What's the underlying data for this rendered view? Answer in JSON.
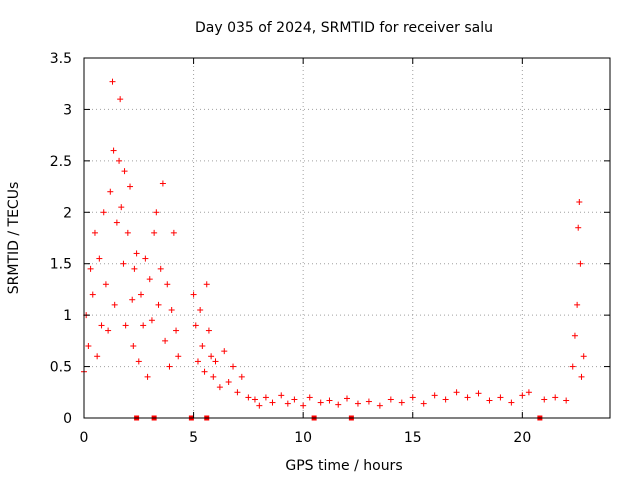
{
  "chart_data": {
    "type": "scatter",
    "title": "Day 035 of 2024, SRMTID for receiver salu",
    "xlabel": "GPS time / hours",
    "ylabel": "SRMTID / TECUs",
    "xlim": [
      0,
      24
    ],
    "ylim": [
      0,
      3.5
    ],
    "xticks": [
      0,
      5,
      10,
      15,
      20
    ],
    "xtick_labels": [
      "0",
      "5",
      "10",
      "15",
      "20"
    ],
    "yticks": [
      0,
      0.5,
      1,
      1.5,
      2,
      2.5,
      3,
      3.5
    ],
    "ytick_labels": [
      "0",
      "0.5",
      "1",
      "1.5",
      "2",
      "2.5",
      "3",
      "3.5"
    ],
    "grid": true,
    "marker": "+",
    "marker_color": "#ff0000",
    "zero_markers_x": [
      2.4,
      3.2,
      4.9,
      5.6,
      10.5,
      12.2,
      20.8
    ],
    "series": [
      {
        "name": "SRMTID",
        "x": [
          0.0,
          0.1,
          0.2,
          0.3,
          0.4,
          0.5,
          0.6,
          0.7,
          0.8,
          0.9,
          1.0,
          1.1,
          1.2,
          1.3,
          1.35,
          1.4,
          1.5,
          1.6,
          1.65,
          1.7,
          1.8,
          1.85,
          1.9,
          2.0,
          2.1,
          2.2,
          2.25,
          2.3,
          2.4,
          2.5,
          2.6,
          2.7,
          2.8,
          2.9,
          3.0,
          3.1,
          3.2,
          3.3,
          3.4,
          3.5,
          3.6,
          3.7,
          3.8,
          3.9,
          4.0,
          4.1,
          4.2,
          4.3,
          5.0,
          5.1,
          5.2,
          5.3,
          5.4,
          5.5,
          5.6,
          5.7,
          5.8,
          5.9,
          6.0,
          6.2,
          6.4,
          6.6,
          6.8,
          7.0,
          7.2,
          7.5,
          7.8,
          8.0,
          8.3,
          8.6,
          9.0,
          9.3,
          9.6,
          10.0,
          10.3,
          10.8,
          11.2,
          11.6,
          12.0,
          12.5,
          13.0,
          13.5,
          14.0,
          14.5,
          15.0,
          15.5,
          16.0,
          16.5,
          17.0,
          17.5,
          18.0,
          18.5,
          19.0,
          19.5,
          20.0,
          20.3,
          21.0,
          21.5,
          22.0,
          22.3,
          22.4,
          22.5,
          22.55,
          22.6,
          22.65,
          22.7,
          22.8
        ],
        "y": [
          0.45,
          1.0,
          0.7,
          1.45,
          1.2,
          1.8,
          0.6,
          1.55,
          0.9,
          2.0,
          1.3,
          0.85,
          2.2,
          3.27,
          2.6,
          1.1,
          1.9,
          2.5,
          3.1,
          2.05,
          1.5,
          2.4,
          0.9,
          1.8,
          2.25,
          1.15,
          0.7,
          1.45,
          1.6,
          0.55,
          1.2,
          0.9,
          1.55,
          0.4,
          1.35,
          0.95,
          1.8,
          2.0,
          1.1,
          1.45,
          2.28,
          0.75,
          1.3,
          0.5,
          1.05,
          1.8,
          0.85,
          0.6,
          1.2,
          0.9,
          0.55,
          1.05,
          0.7,
          0.45,
          1.3,
          0.85,
          0.6,
          0.4,
          0.55,
          0.3,
          0.65,
          0.35,
          0.5,
          0.25,
          0.4,
          0.2,
          0.18,
          0.12,
          0.2,
          0.15,
          0.22,
          0.14,
          0.18,
          0.12,
          0.2,
          0.15,
          0.17,
          0.13,
          0.19,
          0.14,
          0.16,
          0.12,
          0.18,
          0.15,
          0.2,
          0.14,
          0.22,
          0.18,
          0.25,
          0.2,
          0.24,
          0.17,
          0.2,
          0.15,
          0.22,
          0.25,
          0.18,
          0.2,
          0.17,
          0.5,
          0.8,
          1.1,
          1.85,
          2.1,
          1.5,
          0.4,
          0.6
        ]
      }
    ]
  }
}
